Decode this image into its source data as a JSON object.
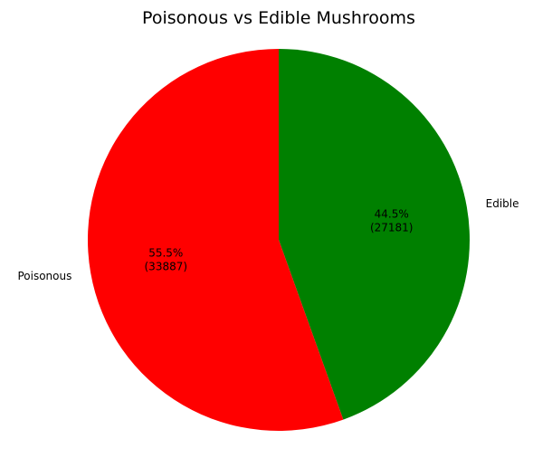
{
  "chart_data": {
    "type": "pie",
    "title": "Poisonous vs Edible Mushrooms",
    "start_angle_deg": 90,
    "direction": "clockwise",
    "slices": [
      {
        "label": "Edible",
        "value": 27181,
        "percent_text": "44.5%",
        "count_text": "(27181)",
        "color": "#008000"
      },
      {
        "label": "Poisonous",
        "value": 33887,
        "percent_text": "55.5%",
        "count_text": "(33887)",
        "color": "#ff0000"
      }
    ]
  }
}
